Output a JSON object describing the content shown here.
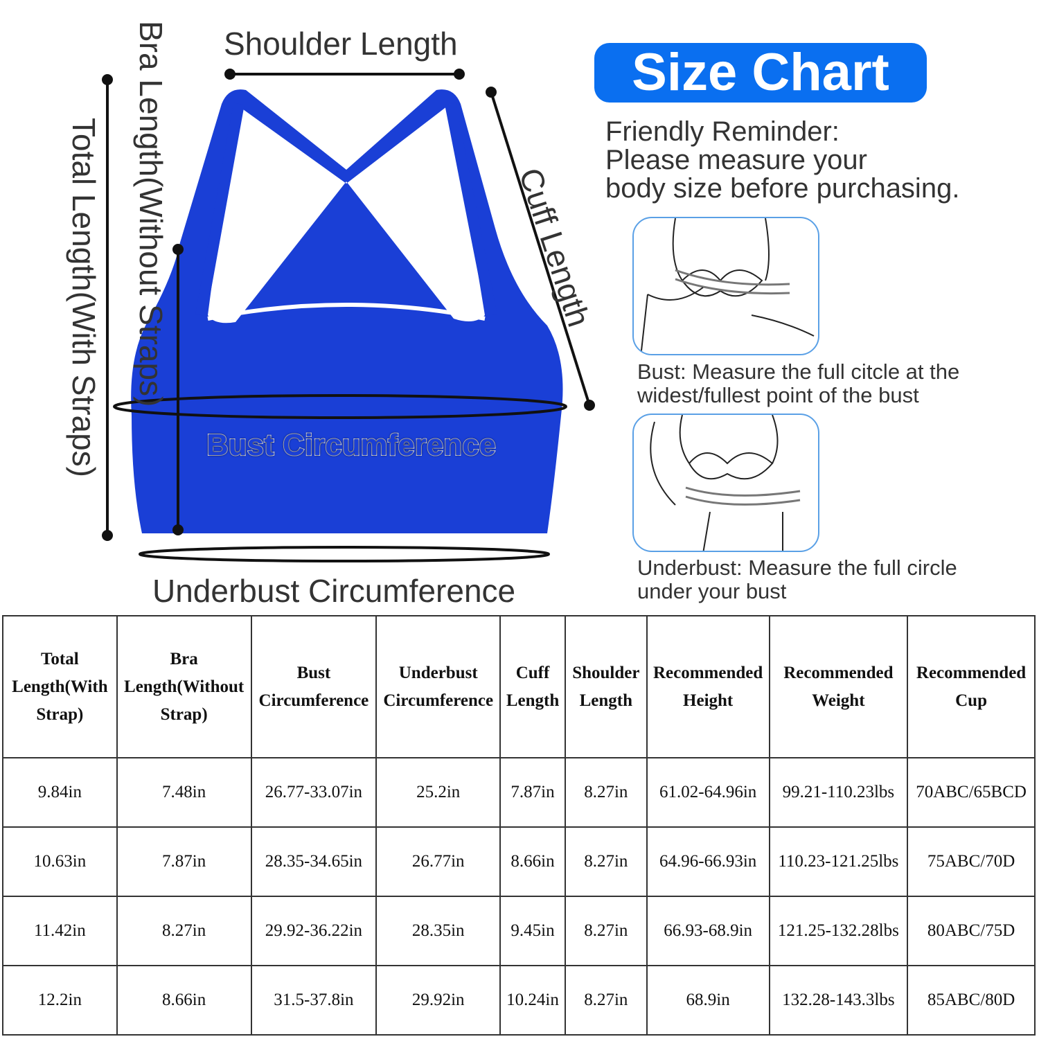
{
  "title": "Size Chart",
  "reminder": [
    "Friendly Reminder:",
    "Please measure your",
    "body size before purchasing."
  ],
  "labels": {
    "shoulder": "Shoulder Length",
    "bra_length": "Bra Length(Without Straps)",
    "total_length": "Total Length(With Straps)",
    "cuff": "Cuff Length",
    "bust": "Bust Circumference",
    "underbust": "Underbust Circumference"
  },
  "captions": {
    "bust": [
      "Bust: Measure the full citcle at the",
      "widest/fullest point of the bust"
    ],
    "underbust": [
      "Underbust: Measure the full circle",
      "under your bust"
    ]
  },
  "colors": {
    "product": "#1a3fd6",
    "accent": "#0a6ff0"
  },
  "table": {
    "headers": [
      [
        "Total",
        "Length(With",
        "Strap)"
      ],
      [
        "Bra",
        "Length(Without",
        "Strap)"
      ],
      [
        "Bust",
        "Circumference"
      ],
      [
        "Underbust",
        "Circumference"
      ],
      [
        "Cuff",
        "Length"
      ],
      [
        "Shoulder",
        "Length"
      ],
      [
        "Recommended",
        "Height"
      ],
      [
        "Recommended",
        "Weight"
      ],
      [
        "Recommended",
        "Cup"
      ]
    ],
    "rows": [
      [
        "9.84in",
        "7.48in",
        "26.77-33.07in",
        "25.2in",
        "7.87in",
        "8.27in",
        "61.02-64.96in",
        "99.21-110.23lbs",
        "70ABC/65BCD"
      ],
      [
        "10.63in",
        "7.87in",
        "28.35-34.65in",
        "26.77in",
        "8.66in",
        "8.27in",
        "64.96-66.93in",
        "110.23-121.25lbs",
        "75ABC/70D"
      ],
      [
        "11.42in",
        "8.27in",
        "29.92-36.22in",
        "28.35in",
        "9.45in",
        "8.27in",
        "66.93-68.9in",
        "121.25-132.28lbs",
        "80ABC/75D"
      ],
      [
        "12.2in",
        "8.66in",
        "31.5-37.8in",
        "29.92in",
        "10.24in",
        "8.27in",
        "68.9in",
        "132.28-143.3lbs",
        "85ABC/80D"
      ]
    ]
  }
}
